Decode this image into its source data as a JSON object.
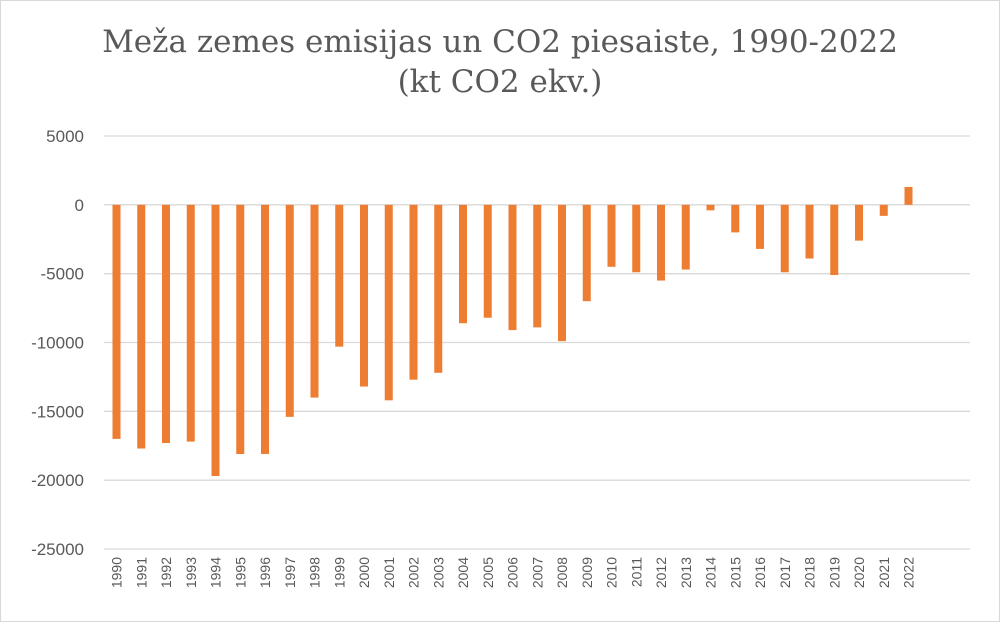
{
  "chart_data": {
    "type": "bar",
    "title": "Meža zemes emisijas un CO2 piesaiste, 1990-2022",
    "subtitle": "(kt CO2 ekv.)",
    "xlabel": "",
    "ylabel": "",
    "ylim": [
      -25000,
      5000
    ],
    "yticks": [
      5000,
      0,
      -5000,
      -10000,
      -15000,
      -20000,
      -25000
    ],
    "grid": true,
    "legend": "none",
    "bar_color": "#ED7D31",
    "gridline_color": "#D9D9D9",
    "categories": [
      "1990",
      "1991",
      "1992",
      "1993",
      "1994",
      "1995",
      "1996",
      "1997",
      "1998",
      "1999",
      "2000",
      "2001",
      "2002",
      "2003",
      "2004",
      "2005",
      "2006",
      "2007",
      "2008",
      "2009",
      "2010",
      "2011",
      "2012",
      "2013",
      "2014",
      "2015",
      "2016",
      "2017",
      "2018",
      "2019",
      "2020",
      "2021",
      "2022"
    ],
    "values": [
      -17000,
      -17700,
      -17300,
      -17200,
      -19700,
      -18100,
      -18100,
      -15400,
      -14000,
      -10300,
      -13200,
      -14200,
      -12700,
      -12200,
      -8600,
      -8200,
      -9100,
      -8900,
      -9900,
      -7000,
      -4500,
      -4900,
      -5500,
      -4700,
      -400,
      -2000,
      -3200,
      -4900,
      -3900,
      -5100,
      -2600,
      -800,
      1300
    ]
  }
}
